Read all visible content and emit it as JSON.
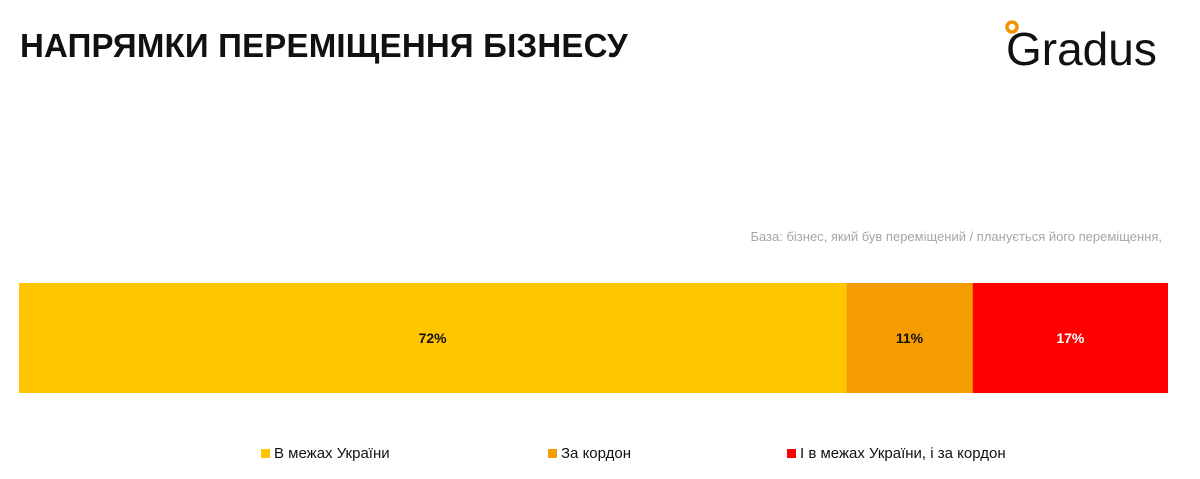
{
  "title": "НАПРЯМКИ ПЕРЕМІЩЕННЯ БІЗНЕСУ",
  "logo": {
    "text": "Gradus",
    "accent_color": "#f39200"
  },
  "base_note": "База: бізнес, який був переміщений / планується його переміщення,",
  "chart_data": {
    "type": "bar",
    "orientation": "horizontal-stacked-100",
    "title": "НАПРЯМКИ ПЕРЕМІЩЕННЯ БІЗНЕСУ",
    "xlim": [
      0,
      100
    ],
    "grid": false,
    "legend_position": "bottom",
    "series": [
      {
        "name": "В межах України",
        "value": 72,
        "label": "72%",
        "color": "#ffc600",
        "label_color": "#111111"
      },
      {
        "name": "За кордон",
        "value": 11,
        "label": "11%",
        "color": "#f59c00",
        "label_color": "#111111"
      },
      {
        "name": "І в межах України, і за кордон",
        "value": 17,
        "label": "17%",
        "color": "#ff0000",
        "label_color": "#ffffff"
      }
    ]
  }
}
